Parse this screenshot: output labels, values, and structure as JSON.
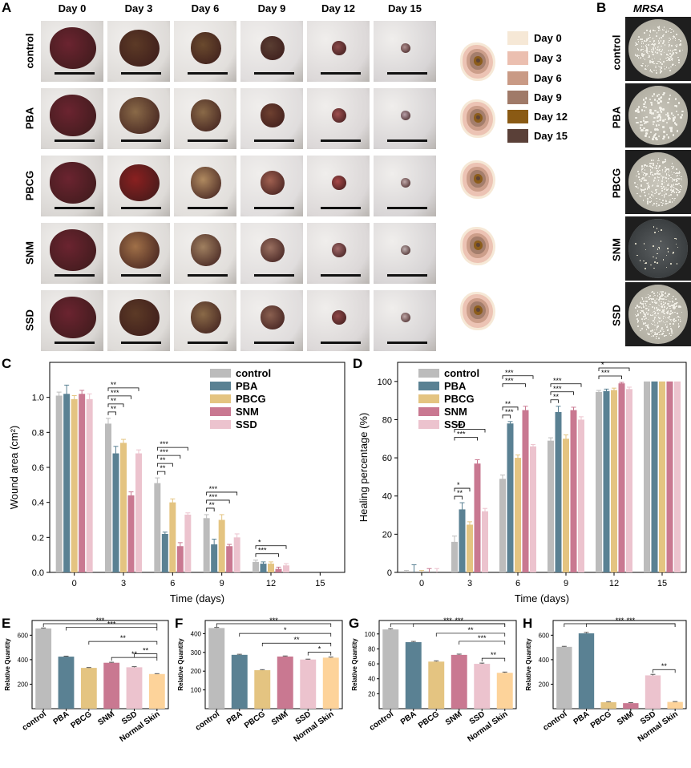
{
  "panel_letters": {
    "A": "A",
    "B": "B",
    "C": "C",
    "D": "D",
    "E": "E",
    "F": "F",
    "G": "G",
    "H": "H"
  },
  "panelA": {
    "days": [
      "Day 0",
      "Day 3",
      "Day 6",
      "Day 9",
      "Day 12",
      "Day 15"
    ],
    "groups": [
      "control",
      "PBA",
      "PBCG",
      "SNM",
      "SSD"
    ],
    "legend": [
      {
        "label": "Day 0",
        "color": "#f6e8d6"
      },
      {
        "label": "Day 3",
        "color": "#ebbfb0"
      },
      {
        "label": "Day 6",
        "color": "#c99a85"
      },
      {
        "label": "Day 9",
        "color": "#a07a68"
      },
      {
        "label": "Day 12",
        "color": "#8a5a14"
      },
      {
        "label": "Day 15",
        "color": "#5a4038"
      }
    ]
  },
  "panelB": {
    "title": "MRSA",
    "groups": [
      "control",
      "PBA",
      "PBCG",
      "SNM",
      "SSD"
    ]
  },
  "chart_data": [
    {
      "panel": "C",
      "type": "bar",
      "xlabel": "Time (days)",
      "ylabel": "Wound area (cm²)",
      "categories": [
        "0",
        "3",
        "6",
        "9",
        "12",
        "15"
      ],
      "ylim": [
        0,
        1.2
      ],
      "yticks": [
        "0.0",
        "0.2",
        "0.4",
        "0.6",
        "0.8",
        "1.0"
      ],
      "series": [
        {
          "name": "control",
          "color": "#bcbcbc",
          "values": [
            1.01,
            0.85,
            0.51,
            0.31,
            0.06,
            0.0
          ],
          "errors": [
            0.02,
            0.03,
            0.03,
            0.02,
            0.01,
            0
          ]
        },
        {
          "name": "PBA",
          "color": "#5a8193",
          "values": [
            1.02,
            0.68,
            0.22,
            0.16,
            0.05,
            0.0
          ],
          "errors": [
            0.05,
            0.04,
            0.01,
            0.03,
            0.01,
            0
          ]
        },
        {
          "name": "PBCG",
          "color": "#e4c481",
          "values": [
            0.99,
            0.74,
            0.4,
            0.3,
            0.05,
            0.0
          ],
          "errors": [
            0.02,
            0.02,
            0.02,
            0.03,
            0.01,
            0
          ]
        },
        {
          "name": "SNM",
          "color": "#c97891",
          "values": [
            1.02,
            0.44,
            0.15,
            0.15,
            0.02,
            0.0
          ],
          "errors": [
            0.02,
            0.02,
            0.02,
            0.01,
            0.01,
            0
          ]
        },
        {
          "name": "SSD",
          "color": "#ecc3ce",
          "values": [
            0.99,
            0.68,
            0.33,
            0.2,
            0.04,
            0.0
          ],
          "errors": [
            0.03,
            0.02,
            0.01,
            0.02,
            0.01,
            0
          ]
        }
      ],
      "annotations": [
        {
          "cat": 1,
          "from": 0,
          "to": 1,
          "label": "**",
          "level": 0
        },
        {
          "cat": 1,
          "from": 0,
          "to": 2,
          "label": "**",
          "level": 1
        },
        {
          "cat": 1,
          "from": 0,
          "to": 3,
          "label": "***",
          "level": 2
        },
        {
          "cat": 1,
          "from": 0,
          "to": 4,
          "label": "**",
          "level": 3
        },
        {
          "cat": 2,
          "from": 0,
          "to": 1,
          "label": "**",
          "level": 0
        },
        {
          "cat": 2,
          "from": 0,
          "to": 2,
          "label": "**",
          "level": 1
        },
        {
          "cat": 2,
          "from": 0,
          "to": 3,
          "label": "***",
          "level": 2
        },
        {
          "cat": 2,
          "from": 0,
          "to": 4,
          "label": "***",
          "level": 3
        },
        {
          "cat": 3,
          "from": 0,
          "to": 1,
          "label": "**",
          "level": 0
        },
        {
          "cat": 3,
          "from": 0,
          "to": 3,
          "label": "***",
          "level": 1
        },
        {
          "cat": 3,
          "from": 0,
          "to": 4,
          "label": "***",
          "level": 2
        },
        {
          "cat": 4,
          "from": 0,
          "to": 3,
          "label": "***",
          "level": 0
        },
        {
          "cat": 4,
          "from": 0,
          "to": 4,
          "label": "*",
          "level": 1
        }
      ]
    },
    {
      "panel": "D",
      "type": "bar",
      "xlabel": "Time (days)",
      "ylabel": "Healing percentage (%)",
      "categories": [
        "0",
        "3",
        "6",
        "9",
        "12",
        "15"
      ],
      "ylim": [
        0,
        110
      ],
      "yticks": [
        "0",
        "20",
        "40",
        "60",
        "80",
        "100"
      ],
      "series": [
        {
          "name": "control",
          "color": "#bcbcbc",
          "values": [
            0,
            16,
            49,
            69,
            94.5,
            100
          ],
          "errors": [
            1,
            3,
            2,
            1.5,
            0.8,
            0
          ]
        },
        {
          "name": "PBA",
          "color": "#5a8193",
          "values": [
            0,
            33,
            78,
            84,
            95,
            100
          ],
          "errors": [
            4,
            3.5,
            1,
            3,
            1,
            0
          ]
        },
        {
          "name": "PBCG",
          "color": "#e4c481",
          "values": [
            0,
            25,
            60,
            70,
            95.5,
            100
          ],
          "errors": [
            1,
            1.5,
            1.5,
            2,
            1,
            0
          ]
        },
        {
          "name": "SNM",
          "color": "#c97891",
          "values": [
            0,
            57,
            85,
            85,
            99,
            100
          ],
          "errors": [
            2,
            2,
            2,
            1.5,
            0.5,
            0
          ]
        },
        {
          "name": "SSD",
          "color": "#ecc3ce",
          "values": [
            0,
            32,
            66,
            80,
            96,
            100
          ],
          "errors": [
            2,
            1.5,
            1,
            1.5,
            1,
            0
          ]
        }
      ],
      "annotations": [
        {
          "cat": 1,
          "from": 0,
          "to": 1,
          "label": "**",
          "level": 0
        },
        {
          "cat": 1,
          "from": 0,
          "to": 2,
          "label": "*",
          "level": 1
        },
        {
          "cat": 1,
          "from": 0,
          "to": 3,
          "label": "***",
          "level": 2
        },
        {
          "cat": 1,
          "from": 0,
          "to": 4,
          "label": "**",
          "level": 3
        },
        {
          "cat": 2,
          "from": 0,
          "to": 1,
          "label": "***",
          "level": 0
        },
        {
          "cat": 2,
          "from": 0,
          "to": 2,
          "label": "**",
          "level": 1
        },
        {
          "cat": 2,
          "from": 0,
          "to": 3,
          "label": "***",
          "level": 2
        },
        {
          "cat": 2,
          "from": 0,
          "to": 4,
          "label": "***",
          "level": 3
        },
        {
          "cat": 3,
          "from": 0,
          "to": 1,
          "label": "**",
          "level": 0
        },
        {
          "cat": 3,
          "from": 0,
          "to": 3,
          "label": "***",
          "level": 1
        },
        {
          "cat": 3,
          "from": 0,
          "to": 4,
          "label": "***",
          "level": 2
        },
        {
          "cat": 4,
          "from": 0,
          "to": 3,
          "label": "***",
          "level": 0
        },
        {
          "cat": 4,
          "from": 0,
          "to": 4,
          "label": "*",
          "level": 1
        }
      ]
    },
    {
      "panel": "E",
      "type": "bar",
      "ylabel": "Relative Quantity",
      "categories": [
        "control",
        "PBA",
        "PBCG",
        "SNM",
        "SSD",
        "Normal Skin"
      ],
      "colors": [
        "#bcbcbc",
        "#5a8193",
        "#e4c481",
        "#c97891",
        "#ecc3ce",
        "#fdd39a"
      ],
      "values": [
        655,
        425,
        333,
        375,
        338,
        283
      ],
      "errors": [
        4,
        4,
        3,
        4,
        5,
        3
      ],
      "ylim": [
        0,
        720
      ],
      "yticks": [
        "200",
        "400",
        "600"
      ],
      "annotations": [
        {
          "from": 3,
          "to": 5,
          "label": "**",
          "level": 0
        },
        {
          "from": 4,
          "to": 5,
          "label": "**",
          "level": 1
        },
        {
          "from": 2,
          "to": 5,
          "label": "**",
          "level": 2
        },
        {
          "from": 1,
          "to": 5,
          "label": "***",
          "level": 3
        },
        {
          "from": 0,
          "to": 5,
          "label": "***",
          "level": 4
        }
      ]
    },
    {
      "panel": "F",
      "type": "bar",
      "ylabel": "Relative Quantity",
      "categories": [
        "control",
        "PBA",
        "PBCG",
        "SNM",
        "SSD",
        "Normal Skin"
      ],
      "colors": [
        "#bcbcbc",
        "#5a8193",
        "#e4c481",
        "#c97891",
        "#ecc3ce",
        "#fdd39a"
      ],
      "values": [
        430,
        287,
        205,
        278,
        262,
        272
      ],
      "errors": [
        3,
        3,
        3,
        3,
        2,
        3
      ],
      "ylim": [
        0,
        470
      ],
      "yticks": [
        "100",
        "200",
        "300",
        "400"
      ],
      "annotations": [
        {
          "from": 4,
          "to": 5,
          "label": "*",
          "level": 0
        },
        {
          "from": 2,
          "to": 5,
          "label": "**",
          "level": 1
        },
        {
          "from": 1,
          "to": 5,
          "label": "*",
          "level": 2
        },
        {
          "from": 0,
          "to": 5,
          "label": "***",
          "level": 3
        }
      ]
    },
    {
      "panel": "G",
      "type": "bar",
      "ylabel": "Relative Quantity",
      "categories": [
        "control",
        "PBA",
        "PBCG",
        "SNM",
        "SSD",
        "Normal Skin"
      ],
      "colors": [
        "#bcbcbc",
        "#5a8193",
        "#e4c481",
        "#c97891",
        "#ecc3ce",
        "#fdd39a"
      ],
      "values": [
        106,
        89,
        63,
        72,
        60,
        48
      ],
      "errors": [
        1,
        1,
        1,
        1,
        1,
        1
      ],
      "ylim": [
        0,
        118
      ],
      "yticks": [
        "20",
        "40",
        "60",
        "80",
        "100"
      ],
      "annotations": [
        {
          "from": 4,
          "to": 5,
          "label": "**",
          "level": 0
        },
        {
          "from": 3,
          "to": 5,
          "label": "***",
          "level": 1
        },
        {
          "from": 2,
          "to": 5,
          "label": "**",
          "level": 2
        },
        {
          "from": 1,
          "to": 5,
          "label": "***",
          "level": 3
        },
        {
          "from": 0,
          "to": 5,
          "label": "***",
          "level": 4
        }
      ]
    },
    {
      "panel": "H",
      "type": "bar",
      "ylabel": "Relative Quantity",
      "categories": [
        "control",
        "PBA",
        "PBCG",
        "SNM",
        "SSD",
        "Normal Skin"
      ],
      "colors": [
        "#bcbcbc",
        "#5a8193",
        "#e4c481",
        "#c97891",
        "#ecc3ce",
        "#fdd39a"
      ],
      "values": [
        505,
        615,
        53,
        45,
        272,
        55
      ],
      "errors": [
        4,
        8,
        4,
        4,
        8,
        3
      ],
      "ylim": [
        0,
        720
      ],
      "yticks": [
        "200",
        "400",
        "600"
      ],
      "annotations": [
        {
          "from": 4,
          "to": 5,
          "label": "**",
          "level": 0
        },
        {
          "from": 1,
          "to": 5,
          "label": "***",
          "level": 3
        },
        {
          "from": 0,
          "to": 5,
          "label": "***",
          "level": 4
        }
      ]
    }
  ]
}
